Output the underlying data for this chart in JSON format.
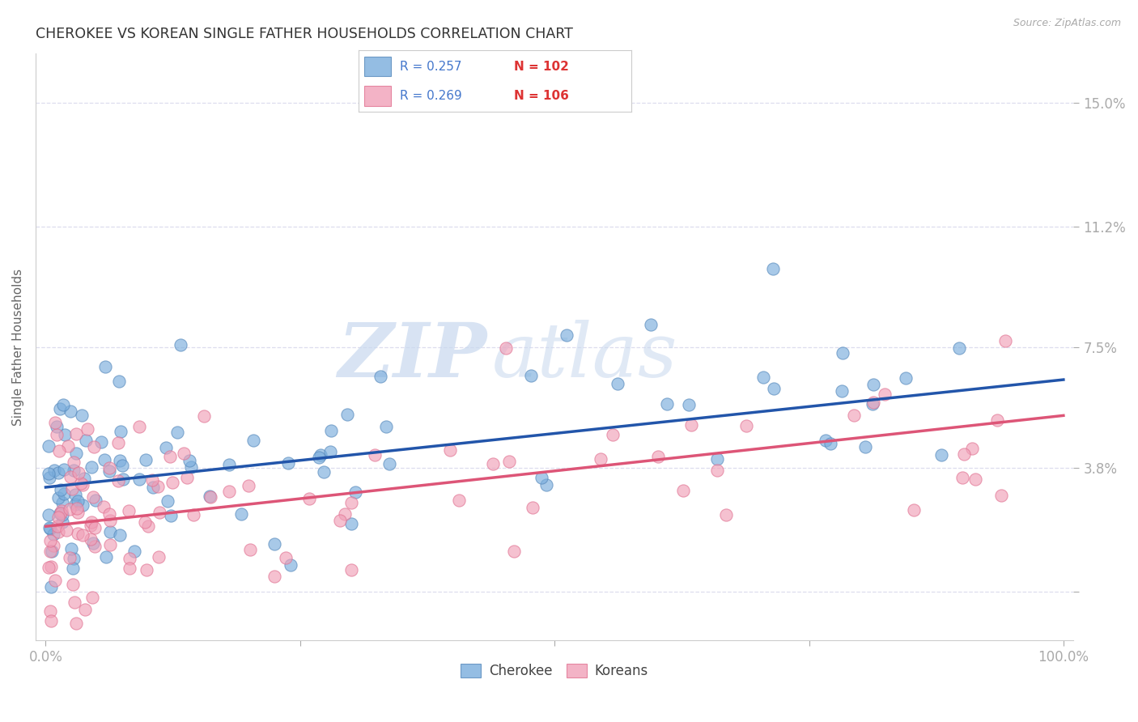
{
  "title": "CHEROKEE VS KOREAN SINGLE FATHER HOUSEHOLDS CORRELATION CHART",
  "source": "Source: ZipAtlas.com",
  "ylabel": "Single Father Households",
  "cherokee_color": "#7aaddc",
  "korean_color": "#f0a0b8",
  "cherokee_edge_color": "#5588bb",
  "korean_edge_color": "#e07090",
  "cherokee_line_color": "#2255aa",
  "korean_line_color": "#dd5577",
  "legend_r_cherokee": "R = 0.257",
  "legend_n_cherokee": "N = 102",
  "legend_r_korean": "R = 0.269",
  "legend_n_korean": "N = 106",
  "legend_label_cherokee": "Cherokee",
  "legend_label_korean": "Koreans",
  "watermark_zip": "ZIP",
  "watermark_atlas": "atlas",
  "r_color": "#4477cc",
  "n_color": "#dd3333",
  "ytick_color": "#4477cc",
  "xtick_color": "#4477cc",
  "source_color": "#aaaaaa",
  "title_color": "#333333",
  "grid_color": "#ddddee",
  "background_color": "#ffffff",
  "cherokee_intercept": 3.2,
  "cherokee_slope": 0.033,
  "korean_intercept": 2.0,
  "korean_slope": 0.034
}
